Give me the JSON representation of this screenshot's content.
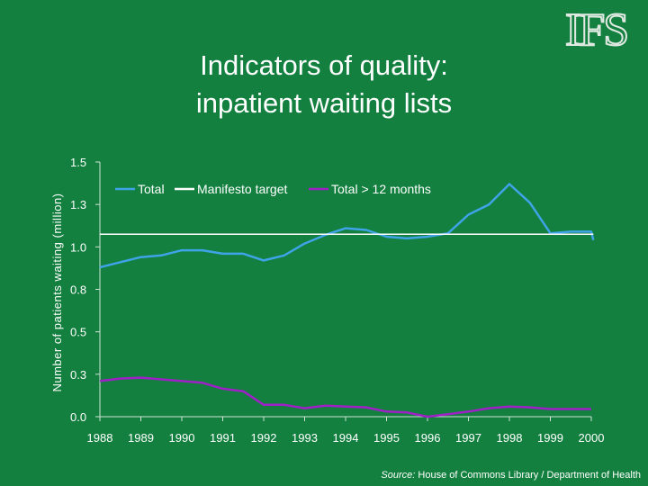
{
  "title": {
    "line1": "Indicators of quality:",
    "line2": "inpatient waiting lists"
  },
  "logo": {
    "text": "IFS"
  },
  "source": {
    "label": "Source:",
    "text": " House of Commons Library / Department of Health"
  },
  "colors": {
    "background": "#13803f",
    "total": "#3fa3e8",
    "target": "#ffffff",
    "over12": "#a020c8"
  },
  "chart_data": {
    "type": "line",
    "ylabel": "Number of patients waiting (million)",
    "ylim": [
      0.0,
      1.5
    ],
    "yticks": [
      "0.0",
      "0.3",
      "0.5",
      "0.8",
      "1.0",
      "1.3",
      "1.5"
    ],
    "ytick_values": [
      0.0,
      0.25,
      0.5,
      0.75,
      1.0,
      1.25,
      1.5
    ],
    "xlim": [
      1988,
      2000
    ],
    "xticks": [
      "1988",
      "1989",
      "1990",
      "1991",
      "1992",
      "1993",
      "1994",
      "1995",
      "1996",
      "1997",
      "1998",
      "1999",
      "2000"
    ],
    "xtick_values": [
      1988,
      1989,
      1990,
      1991,
      1992,
      1993,
      1994,
      1995,
      1996,
      1997,
      1998,
      1999,
      2000
    ],
    "legend_position": "top",
    "series": [
      {
        "name": "Total",
        "x": [
          1988,
          1988.5,
          1989,
          1989.5,
          1990,
          1990.5,
          1991,
          1991.5,
          1992,
          1992.5,
          1993,
          1993.5,
          1994,
          1994.5,
          1995,
          1995.5,
          1996,
          1996.5,
          1997,
          1997.5,
          1998,
          1998.5,
          1999,
          1999.5,
          2000,
          2000.05
        ],
        "values": [
          0.88,
          0.91,
          0.94,
          0.95,
          0.98,
          0.98,
          0.96,
          0.96,
          0.92,
          0.95,
          1.02,
          1.07,
          1.11,
          1.1,
          1.06,
          1.05,
          1.06,
          1.08,
          1.19,
          1.25,
          1.37,
          1.26,
          1.08,
          1.09,
          1.09,
          1.04
        ]
      },
      {
        "name": "Manifesto target",
        "x": [
          1988,
          2000.05
        ],
        "values": [
          1.075,
          1.075
        ]
      },
      {
        "name": "Total > 12 months",
        "x": [
          1988,
          1988.5,
          1989,
          1989.5,
          1990,
          1990.5,
          1991,
          1991.5,
          1992,
          1992.5,
          1993,
          1993.5,
          1994,
          1994.5,
          1995,
          1995.5,
          1996,
          1996.5,
          1997,
          1997.5,
          1998,
          1998.5,
          1999,
          1999.5,
          2000
        ],
        "values": [
          0.21,
          0.225,
          0.23,
          0.22,
          0.21,
          0.2,
          0.165,
          0.15,
          0.07,
          0.07,
          0.05,
          0.065,
          0.06,
          0.055,
          0.03,
          0.025,
          0.0,
          0.015,
          0.03,
          0.05,
          0.06,
          0.055,
          0.045,
          0.045,
          0.045
        ]
      }
    ]
  }
}
